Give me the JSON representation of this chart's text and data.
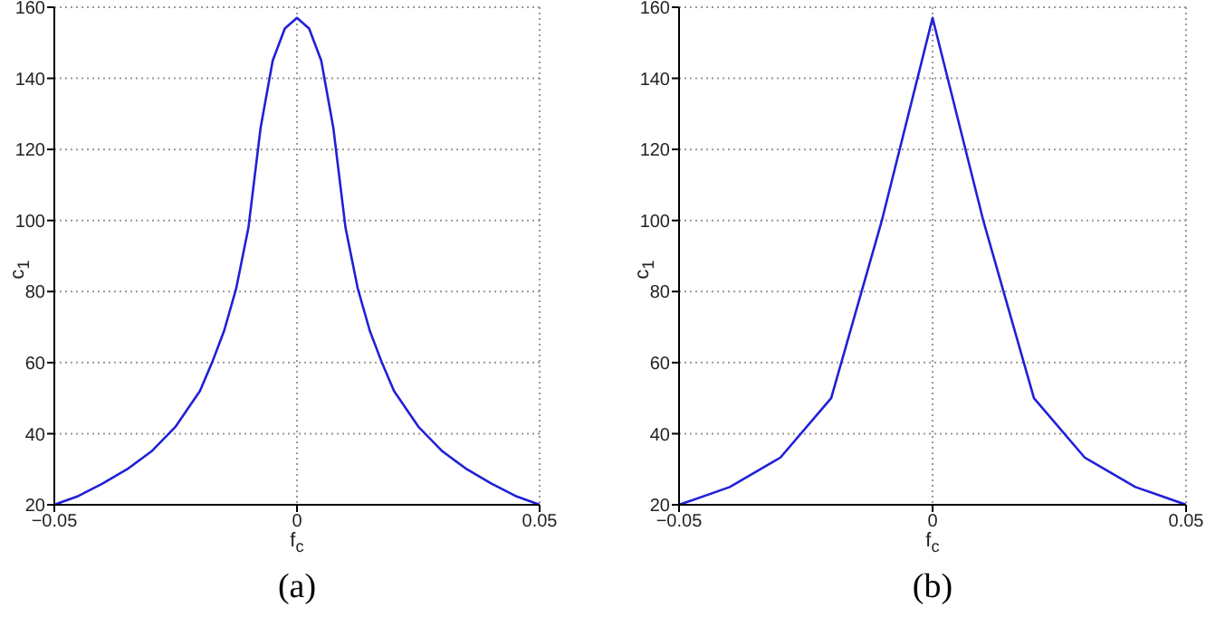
{
  "chart_data": [
    {
      "type": "line",
      "xlabel": "f$_{c}$",
      "ylabel": "c$_{1}$",
      "annotations": [
        "(a)"
      ],
      "x": [
        -0.05,
        -0.045,
        -0.04,
        -0.035,
        -0.03,
        -0.025,
        -0.02,
        -0.0175,
        -0.015,
        -0.0125,
        -0.01,
        -0.0075,
        -0.005,
        -0.0025,
        0,
        0.0025,
        0.005,
        0.0075,
        0.01,
        0.0125,
        0.015,
        0.0175,
        0.02,
        0.025,
        0.03,
        0.035,
        0.04,
        0.045,
        0.05
      ],
      "series": [
        {
          "color": "#2020d8",
          "values": [
            20,
            22.5,
            26,
            30,
            35,
            42,
            52,
            60,
            69,
            81,
            98,
            126,
            145,
            154,
            157,
            154,
            145,
            126,
            98,
            81,
            69,
            60,
            52,
            42,
            35,
            30,
            26,
            22.5,
            20
          ]
        }
      ],
      "xlim": [
        -0.05,
        0.05
      ],
      "xticks": [
        -0.05,
        0,
        0.05
      ],
      "ylim": [
        20,
        160
      ],
      "yticks": [
        20,
        40,
        60,
        80,
        100,
        120,
        140,
        160
      ],
      "grid": true,
      "marker": "none",
      "line_style": "solid"
    },
    {
      "type": "line",
      "xlabel": "f$_{c}$",
      "ylabel": "c$_{1}$",
      "annotations": [
        "(b)"
      ],
      "x": [
        -0.05,
        -0.04,
        -0.03,
        -0.02,
        -0.01,
        0,
        0.01,
        0.02,
        0.03,
        0.04,
        0.05
      ],
      "series": [
        {
          "color": "#2020d8",
          "values": [
            20,
            25,
            33.3,
            50,
            100,
            157,
            100,
            50,
            33.3,
            25,
            20
          ]
        }
      ],
      "xlim": [
        -0.05,
        0.05
      ],
      "xticks": [
        -0.05,
        0,
        0.05
      ],
      "ylim": [
        20,
        160
      ],
      "yticks": [
        20,
        40,
        60,
        80,
        100,
        120,
        140,
        160
      ],
      "grid": true,
      "marker": "none",
      "line_style": "solid"
    }
  ]
}
